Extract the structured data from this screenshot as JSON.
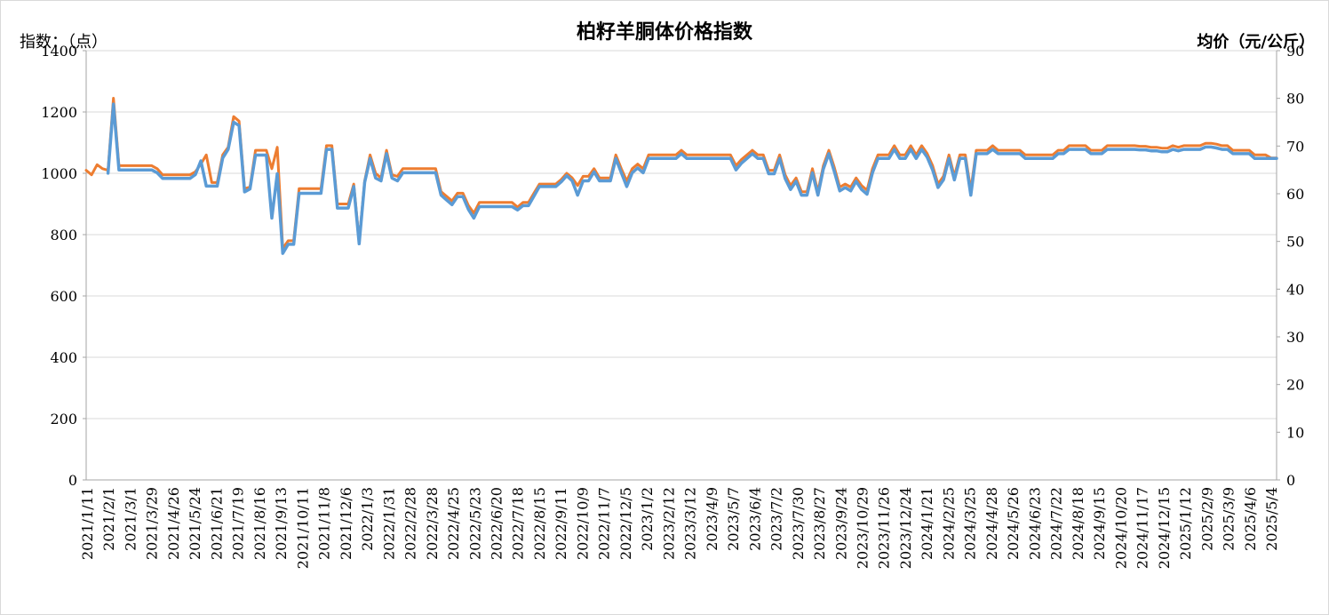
{
  "chart_data": {
    "type": "line",
    "title": "柏籽羊胴体价格指数",
    "ylabel_left": "指数：（点）",
    "ylabel_right": "均价（元/公斤）",
    "y_left_lim": [
      0,
      1400
    ],
    "y_left_ticks": [
      0,
      200,
      400,
      600,
      800,
      1000,
      1200,
      1400
    ],
    "y_right_lim": [
      0,
      90
    ],
    "y_right_ticks": [
      0,
      10,
      20,
      30,
      40,
      50,
      60,
      70,
      80,
      90
    ],
    "grid": true,
    "x_ticks": [
      "2021/1/11",
      "2021/2/1",
      "2021/3/1",
      "2021/3/29",
      "2021/4/26",
      "2021/5/24",
      "2021/6/21",
      "2021/7/19",
      "2021/8/16",
      "2021/9/13",
      "2021/10/11",
      "2021/11/8",
      "2021/12/6",
      "2022/1/3",
      "2022/1/31",
      "2022/2/28",
      "2022/3/28",
      "2022/4/25",
      "2022/5/23",
      "2022/6/20",
      "2022/7/18",
      "2022/8/15",
      "2022/9/11",
      "2022/10/9",
      "2022/11/7",
      "2022/12/5",
      "2023/1/2",
      "2023/2/12",
      "2023/3/12",
      "2023/4/9",
      "2023/5/7",
      "2023/6/4",
      "2023/7/2",
      "2023/7/30",
      "2023/8/27",
      "2023/9/24",
      "2023/10/29",
      "2023/11/26",
      "2023/12/24",
      "2024/1/21",
      "2024/2/25",
      "2024/3/25",
      "2024/4/28",
      "2024/5/26",
      "2024/6/23",
      "2024/7/22",
      "2024/8/18",
      "2024/9/15",
      "2024/10/20",
      "2024/11/17",
      "2024/12/15",
      "2025/1/12",
      "2025/2/9",
      "2025/3/9",
      "2025/4/6",
      "2025/5/4"
    ],
    "series": [
      {
        "axis": "left",
        "color": "#ED7D31",
        "values": [
          1010,
          995,
          1028,
          1015,
          1010,
          1245,
          1025,
          1025,
          1025,
          1025,
          1025,
          1025,
          1025,
          1015,
          995,
          995,
          995,
          995,
          995,
          995,
          1005,
          1030,
          1060,
          970,
          970,
          1060,
          1085,
          1185,
          1170,
          950,
          955,
          1075,
          1075,
          1075,
          1015,
          1085,
          755,
          780,
          780,
          950,
          950,
          950,
          950,
          950,
          1090,
          1090,
          900,
          900,
          900,
          965,
          780,
          975,
          1060,
          1000,
          985,
          1075,
          995,
          990,
          1015,
          1015,
          1015,
          1015,
          1015,
          1015,
          1015,
          940,
          925,
          910,
          935,
          935,
          895,
          870,
          905,
          905,
          905,
          905,
          905,
          905,
          905,
          890,
          905,
          905,
          935,
          965,
          965,
          965,
          965,
          980,
          1000,
          985,
          960,
          990,
          990,
          1015,
          985,
          985,
          985,
          1060,
          1015,
          975,
          1015,
          1030,
          1015,
          1060,
          1060,
          1060,
          1060,
          1060,
          1060,
          1075,
          1060,
          1060,
          1060,
          1060,
          1060,
          1060,
          1060,
          1060,
          1060,
          1025,
          1045,
          1060,
          1075,
          1060,
          1060,
          1010,
          1010,
          1060,
          995,
          960,
          985,
          940,
          940,
          1015,
          940,
          1025,
          1075,
          1020,
          955,
          965,
          955,
          985,
          960,
          945,
          1015,
          1060,
          1060,
          1060,
          1090,
          1060,
          1060,
          1090,
          1060,
          1090,
          1065,
          1025,
          965,
          990,
          1060,
          990,
          1060,
          1060,
          945,
          1075,
          1075,
          1075,
          1090,
          1075,
          1075,
          1075,
          1075,
          1075,
          1060,
          1060,
          1060,
          1060,
          1060,
          1060,
          1075,
          1075,
          1090,
          1090,
          1090,
          1090,
          1075,
          1075,
          1075,
          1090,
          1090,
          1090,
          1090,
          1090,
          1090,
          1088,
          1088,
          1085,
          1085,
          1082,
          1082,
          1090,
          1085,
          1090,
          1090,
          1090,
          1090,
          1098,
          1098,
          1095,
          1090,
          1090,
          1075,
          1075,
          1075,
          1075,
          1060,
          1060,
          1060,
          1050,
          1050
        ]
      },
      {
        "axis": "right",
        "color": "#5B9BD5",
        "values": [
          null,
          null,
          null,
          null,
          64.3,
          78.8,
          65.0,
          65.0,
          65.0,
          65.0,
          65.0,
          65.0,
          65.0,
          64.4,
          63.2,
          63.2,
          63.2,
          63.2,
          63.2,
          63.2,
          64.0,
          66.9,
          61.6,
          61.6,
          61.6,
          67.5,
          69.3,
          75.0,
          74.3,
          60.4,
          61.0,
          68.1,
          68.1,
          68.1,
          54.9,
          64.2,
          47.5,
          49.4,
          49.4,
          60.1,
          60.1,
          60.1,
          60.1,
          60.1,
          69.3,
          69.3,
          57.0,
          57.0,
          57.0,
          61.5,
          49.5,
          62.4,
          67.4,
          63.3,
          62.7,
          68.4,
          63.3,
          62.7,
          64.4,
          64.4,
          64.4,
          64.4,
          64.4,
          64.4,
          64.4,
          59.7,
          58.7,
          57.7,
          59.4,
          59.4,
          56.7,
          54.9,
          57.3,
          57.3,
          57.3,
          57.3,
          57.3,
          57.3,
          57.3,
          56.6,
          57.5,
          57.5,
          59.5,
          61.5,
          61.5,
          61.5,
          61.5,
          62.5,
          63.8,
          62.7,
          59.7,
          62.7,
          62.7,
          64.6,
          62.7,
          62.7,
          62.7,
          67.4,
          64.4,
          61.5,
          64.4,
          65.4,
          64.4,
          67.4,
          67.4,
          67.4,
          67.4,
          67.4,
          67.4,
          68.4,
          67.4,
          67.4,
          67.4,
          67.4,
          67.4,
          67.4,
          67.4,
          67.4,
          67.4,
          65.0,
          66.4,
          67.4,
          68.4,
          67.4,
          67.4,
          64.2,
          64.2,
          67.4,
          63.2,
          60.9,
          62.6,
          59.7,
          59.7,
          64.4,
          59.7,
          65.2,
          68.4,
          64.7,
          60.6,
          61.3,
          60.6,
          62.6,
          60.9,
          59.9,
          64.4,
          67.4,
          67.4,
          67.4,
          69.3,
          67.4,
          67.4,
          69.3,
          67.4,
          69.3,
          67.7,
          65.0,
          61.3,
          62.9,
          67.4,
          62.9,
          67.4,
          67.4,
          59.7,
          68.4,
          68.4,
          68.4,
          69.3,
          68.4,
          68.4,
          68.4,
          68.4,
          68.4,
          67.4,
          67.4,
          67.4,
          67.4,
          67.4,
          67.4,
          68.4,
          68.4,
          69.3,
          69.3,
          69.3,
          69.3,
          68.4,
          68.4,
          68.4,
          69.3,
          69.3,
          69.3,
          69.3,
          69.3,
          69.3,
          69.2,
          69.2,
          69.0,
          69.0,
          68.8,
          68.8,
          69.3,
          69.0,
          69.3,
          69.3,
          69.3,
          69.3,
          69.8,
          69.8,
          69.6,
          69.3,
          69.3,
          68.4,
          68.4,
          68.4,
          68.4,
          67.4,
          67.4,
          67.4,
          67.4,
          67.4
        ]
      }
    ]
  }
}
